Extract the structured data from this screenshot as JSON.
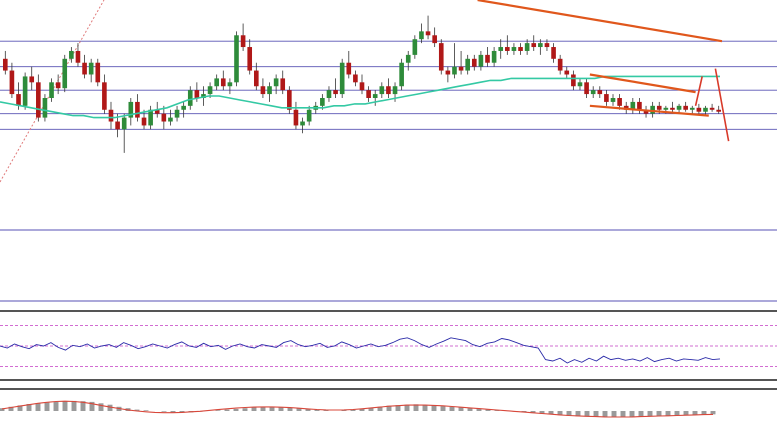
{
  "chart_data": [
    {
      "type": "candlestick",
      "title": "",
      "panel": "price",
      "ylim": [
        0,
        100
      ],
      "grid": "horizontal",
      "colors": {
        "bull": "#2e8b3a",
        "bear": "#b01818",
        "wick": "#333333",
        "moving_average": "#34c9a4",
        "trend_line": "#e0571c",
        "level_line": "#3a34a8",
        "arrow": "#d83a2a",
        "dotted_trend": "#e07a7a"
      },
      "candles": [
        [
          70,
          74,
          62,
          64
        ],
        [
          64,
          68,
          50,
          52
        ],
        [
          52,
          58,
          44,
          46
        ],
        [
          46,
          63,
          44,
          61
        ],
        [
          61,
          66,
          54,
          58
        ],
        [
          58,
          62,
          38,
          40
        ],
        [
          40,
          52,
          38,
          50
        ],
        [
          50,
          60,
          48,
          58
        ],
        [
          58,
          62,
          52,
          55
        ],
        [
          55,
          72,
          53,
          70
        ],
        [
          70,
          76,
          68,
          74
        ],
        [
          74,
          78,
          66,
          68
        ],
        [
          68,
          72,
          60,
          62
        ],
        [
          62,
          70,
          58,
          68
        ],
        [
          68,
          70,
          56,
          58
        ],
        [
          58,
          62,
          42,
          44
        ],
        [
          44,
          48,
          34,
          38
        ],
        [
          38,
          42,
          30,
          34
        ],
        [
          34,
          42,
          22,
          40
        ],
        [
          40,
          50,
          36,
          48
        ],
        [
          48,
          52,
          38,
          40
        ],
        [
          40,
          44,
          34,
          36
        ],
        [
          36,
          46,
          34,
          44
        ],
        [
          44,
          48,
          40,
          42
        ],
        [
          42,
          46,
          34,
          38
        ],
        [
          38,
          44,
          36,
          40
        ],
        [
          40,
          46,
          38,
          44
        ],
        [
          44,
          48,
          40,
          46
        ],
        [
          46,
          56,
          44,
          54
        ],
        [
          54,
          58,
          48,
          50
        ],
        [
          50,
          56,
          46,
          52
        ],
        [
          52,
          58,
          50,
          56
        ],
        [
          56,
          62,
          54,
          60
        ],
        [
          60,
          64,
          54,
          56
        ],
        [
          56,
          60,
          52,
          58
        ],
        [
          58,
          84,
          56,
          82
        ],
        [
          82,
          88,
          74,
          76
        ],
        [
          76,
          80,
          62,
          64
        ],
        [
          64,
          68,
          54,
          56
        ],
        [
          56,
          60,
          50,
          52
        ],
        [
          52,
          58,
          48,
          56
        ],
        [
          56,
          62,
          52,
          60
        ],
        [
          60,
          64,
          52,
          54
        ],
        [
          54,
          56,
          42,
          44
        ],
        [
          44,
          48,
          34,
          36
        ],
        [
          36,
          40,
          32,
          38
        ],
        [
          38,
          46,
          36,
          44
        ],
        [
          44,
          48,
          42,
          46
        ],
        [
          46,
          52,
          44,
          50
        ],
        [
          50,
          56,
          48,
          54
        ],
        [
          54,
          60,
          50,
          52
        ],
        [
          52,
          70,
          50,
          68
        ],
        [
          68,
          74,
          60,
          62
        ],
        [
          62,
          64,
          56,
          58
        ],
        [
          58,
          62,
          52,
          54
        ],
        [
          54,
          56,
          48,
          50
        ],
        [
          50,
          54,
          46,
          52
        ],
        [
          52,
          58,
          50,
          56
        ],
        [
          56,
          60,
          50,
          52
        ],
        [
          52,
          58,
          48,
          56
        ],
        [
          56,
          70,
          54,
          68
        ],
        [
          68,
          74,
          64,
          72
        ],
        [
          72,
          82,
          70,
          80
        ],
        [
          80,
          88,
          78,
          84
        ],
        [
          84,
          92,
          80,
          82
        ],
        [
          82,
          86,
          76,
          78
        ],
        [
          78,
          80,
          62,
          64
        ],
        [
          64,
          66,
          58,
          62
        ],
        [
          62,
          78,
          60,
          66
        ],
        [
          66,
          74,
          62,
          64
        ],
        [
          64,
          72,
          62,
          70
        ],
        [
          70,
          72,
          64,
          66
        ],
        [
          66,
          74,
          64,
          72
        ],
        [
          72,
          76,
          66,
          68
        ],
        [
          68,
          76,
          66,
          74
        ],
        [
          74,
          80,
          70,
          76
        ],
        [
          76,
          82,
          72,
          74
        ],
        [
          74,
          78,
          72,
          76
        ],
        [
          76,
          78,
          72,
          74
        ],
        [
          74,
          80,
          72,
          78
        ],
        [
          78,
          82,
          74,
          76
        ],
        [
          76,
          80,
          72,
          78
        ],
        [
          78,
          80,
          74,
          76
        ],
        [
          76,
          78,
          68,
          70
        ],
        [
          70,
          72,
          62,
          64
        ],
        [
          64,
          66,
          60,
          62
        ],
        [
          62,
          64,
          54,
          56
        ],
        [
          56,
          60,
          54,
          58
        ],
        [
          58,
          60,
          50,
          52
        ],
        [
          52,
          56,
          50,
          54
        ],
        [
          54,
          56,
          50,
          52
        ],
        [
          52,
          54,
          46,
          48
        ],
        [
          48,
          52,
          46,
          50
        ],
        [
          50,
          52,
          44,
          46
        ],
        [
          46,
          48,
          42,
          44
        ],
        [
          44,
          50,
          42,
          48
        ],
        [
          48,
          50,
          42,
          44
        ],
        [
          44,
          46,
          40,
          42
        ],
        [
          42,
          48,
          40,
          46
        ],
        [
          46,
          48,
          42,
          44
        ],
        [
          44,
          46,
          42,
          45
        ],
        [
          45,
          48,
          42,
          44
        ],
        [
          44,
          47,
          42,
          46
        ],
        [
          46,
          48,
          43,
          44
        ],
        [
          44,
          46,
          42,
          45
        ],
        [
          45,
          47,
          42,
          43
        ],
        [
          43,
          46,
          41,
          45
        ],
        [
          45,
          47,
          43,
          44
        ],
        [
          44,
          46,
          42,
          43
        ]
      ],
      "moving_average": [
        48,
        47,
        46,
        45,
        44,
        43,
        42,
        41,
        41,
        40,
        40,
        40,
        41,
        42,
        43,
        44,
        45,
        47,
        49,
        50,
        51,
        51,
        50,
        49,
        48,
        47,
        46,
        45,
        45,
        45,
        45,
        45,
        46,
        46,
        47,
        47,
        48,
        49,
        50,
        51,
        52,
        53,
        54,
        55,
        56,
        57,
        58,
        59,
        59,
        60,
        60,
        60,
        60,
        60,
        60,
        60,
        60,
        60,
        61,
        61,
        61,
        61,
        61,
        61,
        61,
        61,
        61,
        61,
        61,
        61
      ],
      "horizontal_levels": [
        79,
        66,
        54,
        42,
        34
      ],
      "trend_lines": [
        {
          "from": [
            72,
            100
          ],
          "to": [
            109,
            79
          ]
        },
        {
          "from": [
            89,
            62
          ],
          "to": [
            105,
            53
          ]
        },
        {
          "from": [
            89,
            46
          ],
          "to": [
            107,
            41
          ]
        }
      ],
      "forecast_arrows": [
        {
          "from": [
            105,
            46
          ],
          "to": [
            106,
            61
          ]
        },
        {
          "from": [
            108,
            65
          ],
          "to": [
            110,
            28
          ]
        }
      ]
    },
    {
      "type": "line",
      "panel": "oscillator",
      "ylim": [
        0,
        100
      ],
      "reference_levels": [
        80,
        50,
        20
      ],
      "values": [
        50,
        47,
        53,
        49,
        46,
        52,
        50,
        55,
        48,
        44,
        51,
        49,
        53,
        47,
        50,
        52,
        48,
        55,
        51,
        46,
        49,
        53,
        50,
        47,
        52,
        56,
        50,
        48,
        54,
        49,
        51,
        45,
        50,
        53,
        49,
        47,
        52,
        50,
        48,
        55,
        58,
        52,
        49,
        51,
        54,
        48,
        50,
        56,
        52,
        47,
        50,
        53,
        49,
        51,
        55,
        60,
        62,
        58,
        52,
        48,
        53,
        57,
        62,
        60,
        58,
        52,
        49,
        54,
        56,
        61,
        59,
        55,
        51,
        49,
        47,
        30,
        28,
        32,
        25,
        30,
        26,
        32,
        28,
        35,
        30,
        32,
        29,
        31,
        28,
        33,
        27,
        30,
        32,
        28,
        31,
        30,
        29,
        33,
        30,
        31
      ]
    },
    {
      "type": "bar",
      "panel": "histogram",
      "ylim": [
        -100,
        100
      ],
      "values": [
        20,
        30,
        40,
        50,
        55,
        60,
        65,
        70,
        72,
        70,
        65,
        55,
        45,
        30,
        20,
        10,
        5,
        0,
        -5,
        -10,
        -12,
        -10,
        -5,
        0,
        5,
        10,
        15,
        20,
        25,
        28,
        30,
        28,
        25,
        20,
        15,
        10,
        5,
        0,
        5,
        10,
        15,
        22,
        30,
        38,
        42,
        45,
        48,
        44,
        40,
        35,
        30,
        25,
        20,
        15,
        10,
        5,
        0,
        -5,
        -10,
        -15,
        -20,
        -25,
        -30,
        -35,
        -38,
        -40,
        -42,
        -44,
        -45,
        -44,
        -42,
        -40,
        -38,
        -36,
        -34,
        -32,
        -30,
        -28,
        -26,
        -24
      ],
      "signal": [
        15,
        25,
        35,
        45,
        55,
        62,
        68,
        70,
        68,
        62,
        52,
        40,
        28,
        18,
        8,
        0,
        -6,
        -10,
        -12,
        -12,
        -10,
        -6,
        -2,
        4,
        10,
        16,
        21,
        25,
        28,
        29,
        29,
        27,
        24,
        20,
        15,
        11,
        8,
        7,
        8,
        11,
        16,
        22,
        28,
        34,
        38,
        42,
        43,
        42,
        40,
        37,
        32,
        27,
        22,
        17,
        12,
        7,
        2,
        -3,
        -8,
        -13,
        -18,
        -23,
        -28,
        -32,
        -35,
        -38,
        -40,
        -42,
        -43,
        -43,
        -42,
        -40,
        -38,
        -36,
        -34,
        -32,
        -30,
        -28,
        -26,
        -24
      ]
    }
  ]
}
